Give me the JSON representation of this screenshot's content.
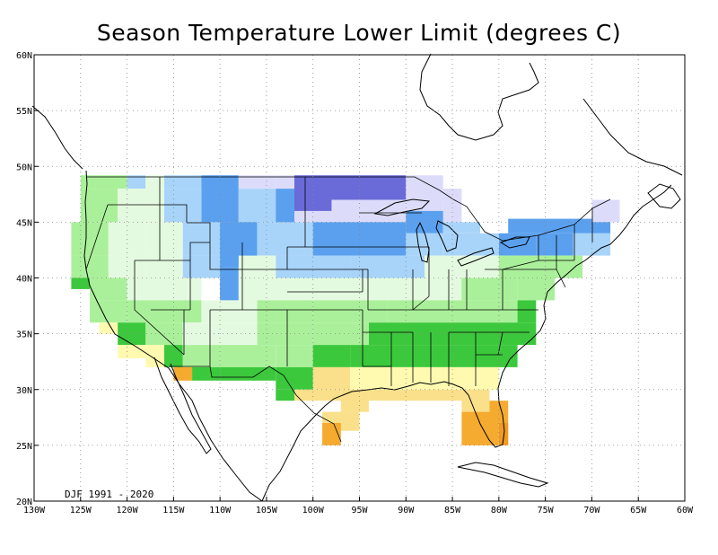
{
  "title": "Season Temperature Lower Limit (degrees C)",
  "period_label": "DJF 1991 - 2020",
  "map": {
    "lon_range": [
      -130,
      -60
    ],
    "lat_range": [
      20,
      60
    ],
    "grid": "dotted, 5 degree spacing",
    "lat_ticks": [
      "20N",
      "25N",
      "30N",
      "35N",
      "40N",
      "45N",
      "50N",
      "55N",
      "60N"
    ],
    "lon_ticks": [
      "130W",
      "125W",
      "120W",
      "115W",
      "110W",
      "105W",
      "100W",
      "95W",
      "90W",
      "85W",
      "80W",
      "75W",
      "70W",
      "65W",
      "60W"
    ]
  },
  "colors": {
    "vlight_blue": "#dcdcfa",
    "light_blue": "#a8d4fa",
    "blue": "#5aa0ee",
    "purple": "#6a6ad8",
    "pale_green": "#e4fae0",
    "light_green": "#aaf09a",
    "green": "#68e068",
    "dark_green": "#3cc83c",
    "pale_yellow": "#fffab0",
    "yellow": "#fae08a",
    "orange": "#f5aa30",
    "darker_orange": "#f09a20"
  }
}
